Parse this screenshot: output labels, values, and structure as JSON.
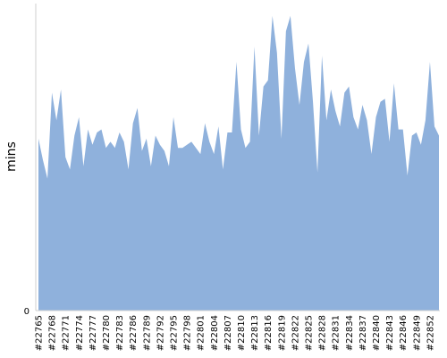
{
  "chart_data": {
    "type": "area",
    "title": "",
    "xlabel": "",
    "ylabel": "mins",
    "ylim": [
      0,
      100
    ],
    "y_tick_labels": [
      "0"
    ],
    "x_tick_labels": [
      "#22765",
      "#22768",
      "#22771",
      "#22774",
      "#22777",
      "#22780",
      "#22783",
      "#22786",
      "#22789",
      "#22792",
      "#22795",
      "#22798",
      "#22801",
      "#22804",
      "#22807",
      "#22810",
      "#22813",
      "#22816",
      "#22819",
      "#22822",
      "#22825",
      "#22828",
      "#22831",
      "#22834",
      "#22837",
      "#22840",
      "#22843",
      "#22846",
      "#22849",
      "#22852"
    ],
    "x": [
      22765,
      22766,
      22767,
      22768,
      22769,
      22770,
      22771,
      22772,
      22773,
      22774,
      22775,
      22776,
      22777,
      22778,
      22779,
      22780,
      22781,
      22782,
      22783,
      22784,
      22785,
      22786,
      22787,
      22788,
      22789,
      22790,
      22791,
      22792,
      22793,
      22794,
      22795,
      22796,
      22797,
      22798,
      22799,
      22800,
      22801,
      22802,
      22803,
      22804,
      22805,
      22806,
      22807,
      22808,
      22809,
      22810,
      22811,
      22812,
      22813,
      22814,
      22815,
      22816,
      22817,
      22818,
      22819,
      22820,
      22821,
      22822,
      22823,
      22824,
      22825,
      22826,
      22827,
      22828,
      22829,
      22830,
      22831,
      22832,
      22833,
      22834,
      22835,
      22836,
      22837,
      22838,
      22839,
      22840,
      22841,
      22842,
      22843,
      22844,
      22845,
      22846,
      22847,
      22848,
      22849,
      22850,
      22851,
      22852,
      22853,
      22854
    ],
    "series": [
      {
        "color": "#8fb1dc",
        "values": [
          56,
          49,
          43,
          71,
          62,
          72,
          50,
          46,
          57,
          63,
          47,
          59,
          54,
          58,
          59,
          53,
          55,
          53,
          58,
          55,
          46,
          61,
          66,
          52,
          56,
          47,
          57,
          54,
          52,
          47,
          63,
          53,
          53,
          54,
          55,
          53,
          51,
          61,
          55,
          51,
          60,
          46,
          58,
          58,
          81,
          59,
          53,
          55,
          86,
          57,
          73,
          75,
          96,
          84,
          56,
          91,
          96,
          79,
          67,
          81,
          87,
          68,
          45,
          83,
          62,
          72,
          65,
          60,
          71,
          73,
          63,
          59,
          67,
          62,
          51,
          63,
          68,
          69,
          55,
          74,
          59,
          59,
          44,
          57,
          58,
          54,
          62,
          81,
          60,
          57
        ],
        "ymin": 0
      }
    ],
    "legend": "none",
    "grid": false
  }
}
